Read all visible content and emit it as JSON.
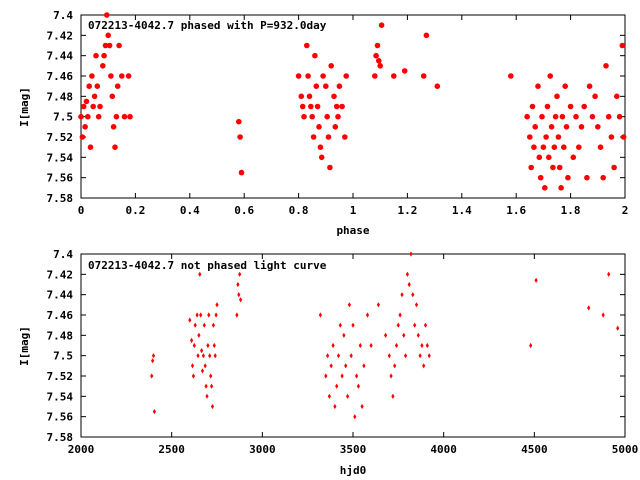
{
  "chart_data": [
    {
      "type": "scatter",
      "title": "072213-4042.7 phased with P=932.0day",
      "xlabel": "phase",
      "ylabel": "I[mag]",
      "xlim": [
        0,
        2
      ],
      "ylim": [
        7.4,
        7.58
      ],
      "y_inverted": true,
      "grid": false,
      "x_ticks": [
        "0",
        "0.2",
        "0.4",
        "0.6",
        "0.8",
        "1",
        "1.2",
        "1.4",
        "1.6",
        "1.8",
        "2"
      ],
      "y_ticks": [
        "7.4",
        "7.42",
        "7.44",
        "7.46",
        "7.48",
        "7.5",
        "7.52",
        "7.54",
        "7.56",
        "7.58"
      ],
      "marker_color": "#ff0000",
      "points": [
        [
          0.0,
          7.5
        ],
        [
          0.005,
          7.52
        ],
        [
          0.01,
          7.49
        ],
        [
          0.015,
          7.51
        ],
        [
          0.02,
          7.485
        ],
        [
          0.025,
          7.5
        ],
        [
          0.03,
          7.47
        ],
        [
          0.035,
          7.53
        ],
        [
          0.04,
          7.46
        ],
        [
          0.045,
          7.49
        ],
        [
          0.05,
          7.48
        ],
        [
          0.055,
          7.44
        ],
        [
          0.06,
          7.47
        ],
        [
          0.065,
          7.5
        ],
        [
          0.07,
          7.49
        ],
        [
          0.08,
          7.45
        ],
        [
          0.085,
          7.44
        ],
        [
          0.09,
          7.43
        ],
        [
          0.095,
          7.4
        ],
        [
          0.1,
          7.42
        ],
        [
          0.105,
          7.43
        ],
        [
          0.11,
          7.46
        ],
        [
          0.115,
          7.48
        ],
        [
          0.12,
          7.51
        ],
        [
          0.125,
          7.53
        ],
        [
          0.13,
          7.5
        ],
        [
          0.135,
          7.47
        ],
        [
          0.14,
          7.43
        ],
        [
          0.15,
          7.46
        ],
        [
          0.16,
          7.5
        ],
        [
          0.175,
          7.46
        ],
        [
          0.18,
          7.5
        ],
        [
          0.58,
          7.505
        ],
        [
          0.585,
          7.52
        ],
        [
          0.59,
          7.555
        ],
        [
          0.8,
          7.46
        ],
        [
          0.81,
          7.48
        ],
        [
          0.815,
          7.49
        ],
        [
          0.82,
          7.5
        ],
        [
          0.83,
          7.43
        ],
        [
          0.835,
          7.46
        ],
        [
          0.84,
          7.48
        ],
        [
          0.845,
          7.49
        ],
        [
          0.85,
          7.5
        ],
        [
          0.855,
          7.52
        ],
        [
          0.86,
          7.44
        ],
        [
          0.865,
          7.47
        ],
        [
          0.87,
          7.49
        ],
        [
          0.875,
          7.51
        ],
        [
          0.88,
          7.53
        ],
        [
          0.885,
          7.54
        ],
        [
          0.89,
          7.46
        ],
        [
          0.9,
          7.47
        ],
        [
          0.905,
          7.5
        ],
        [
          0.91,
          7.52
        ],
        [
          0.915,
          7.55
        ],
        [
          0.92,
          7.45
        ],
        [
          0.93,
          7.48
        ],
        [
          0.935,
          7.51
        ],
        [
          0.94,
          7.49
        ],
        [
          0.945,
          7.5
        ],
        [
          0.95,
          7.47
        ],
        [
          0.96,
          7.49
        ],
        [
          0.97,
          7.52
        ],
        [
          0.975,
          7.46
        ],
        [
          1.08,
          7.46
        ],
        [
          1.085,
          7.44
        ],
        [
          1.09,
          7.43
        ],
        [
          1.095,
          7.445
        ],
        [
          1.1,
          7.45
        ],
        [
          1.105,
          7.41
        ],
        [
          1.15,
          7.46
        ],
        [
          1.19,
          7.455
        ],
        [
          1.26,
          7.46
        ],
        [
          1.27,
          7.42
        ],
        [
          1.31,
          7.47
        ],
        [
          1.58,
          7.46
        ],
        [
          1.64,
          7.5
        ],
        [
          1.65,
          7.52
        ],
        [
          1.655,
          7.55
        ],
        [
          1.66,
          7.49
        ],
        [
          1.665,
          7.53
        ],
        [
          1.67,
          7.51
        ],
        [
          1.68,
          7.47
        ],
        [
          1.685,
          7.54
        ],
        [
          1.69,
          7.56
        ],
        [
          1.695,
          7.5
        ],
        [
          1.7,
          7.53
        ],
        [
          1.705,
          7.57
        ],
        [
          1.71,
          7.52
        ],
        [
          1.715,
          7.49
        ],
        [
          1.72,
          7.54
        ],
        [
          1.725,
          7.46
        ],
        [
          1.73,
          7.51
        ],
        [
          1.735,
          7.55
        ],
        [
          1.74,
          7.53
        ],
        [
          1.745,
          7.5
        ],
        [
          1.75,
          7.48
        ],
        [
          1.755,
          7.52
        ],
        [
          1.76,
          7.55
        ],
        [
          1.765,
          7.57
        ],
        [
          1.77,
          7.5
        ],
        [
          1.775,
          7.53
        ],
        [
          1.78,
          7.47
        ],
        [
          1.785,
          7.51
        ],
        [
          1.79,
          7.56
        ],
        [
          1.8,
          7.49
        ],
        [
          1.81,
          7.54
        ],
        [
          1.82,
          7.5
        ],
        [
          1.83,
          7.53
        ],
        [
          1.84,
          7.51
        ],
        [
          1.85,
          7.49
        ],
        [
          1.86,
          7.56
        ],
        [
          1.87,
          7.47
        ],
        [
          1.88,
          7.5
        ],
        [
          1.89,
          7.48
        ],
        [
          1.9,
          7.51
        ],
        [
          1.91,
          7.53
        ],
        [
          1.92,
          7.56
        ],
        [
          1.93,
          7.45
        ],
        [
          1.94,
          7.5
        ],
        [
          1.95,
          7.52
        ],
        [
          1.96,
          7.55
        ],
        [
          1.97,
          7.48
        ],
        [
          1.98,
          7.5
        ],
        [
          1.99,
          7.43
        ],
        [
          1.995,
          7.52
        ]
      ]
    },
    {
      "type": "scatter",
      "title": "072213-4042.7 not phased light curve",
      "xlabel": "hjd0",
      "ylabel": "I[mag]",
      "xlim": [
        2000,
        5000
      ],
      "ylim": [
        7.4,
        7.58
      ],
      "y_inverted": true,
      "grid": false,
      "x_ticks": [
        "2000",
        "2500",
        "3000",
        "3500",
        "4000",
        "4500",
        "5000"
      ],
      "y_ticks": [
        "7.4",
        "7.42",
        "7.44",
        "7.46",
        "7.48",
        "7.5",
        "7.52",
        "7.54",
        "7.56",
        "7.58"
      ],
      "marker_color": "#ff0000",
      "points": [
        [
          2390,
          7.52
        ],
        [
          2395,
          7.505
        ],
        [
          2400,
          7.5
        ],
        [
          2405,
          7.555
        ],
        [
          2600,
          7.465
        ],
        [
          2610,
          7.485
        ],
        [
          2615,
          7.51
        ],
        [
          2620,
          7.52
        ],
        [
          2625,
          7.49
        ],
        [
          2630,
          7.47
        ],
        [
          2640,
          7.46
        ],
        [
          2645,
          7.5
        ],
        [
          2650,
          7.48
        ],
        [
          2655,
          7.42
        ],
        [
          2660,
          7.46
        ],
        [
          2665,
          7.495
        ],
        [
          2670,
          7.515
        ],
        [
          2675,
          7.5
        ],
        [
          2680,
          7.47
        ],
        [
          2685,
          7.51
        ],
        [
          2690,
          7.53
        ],
        [
          2695,
          7.54
        ],
        [
          2700,
          7.49
        ],
        [
          2705,
          7.46
        ],
        [
          2710,
          7.5
        ],
        [
          2715,
          7.52
        ],
        [
          2720,
          7.53
        ],
        [
          2725,
          7.55
        ],
        [
          2730,
          7.47
        ],
        [
          2735,
          7.49
        ],
        [
          2740,
          7.5
        ],
        [
          2745,
          7.46
        ],
        [
          2750,
          7.45
        ],
        [
          2860,
          7.46
        ],
        [
          2865,
          7.43
        ],
        [
          2870,
          7.44
        ],
        [
          2875,
          7.42
        ],
        [
          2880,
          7.445
        ],
        [
          3320,
          7.46
        ],
        [
          3350,
          7.52
        ],
        [
          3360,
          7.5
        ],
        [
          3370,
          7.54
        ],
        [
          3380,
          7.51
        ],
        [
          3390,
          7.49
        ],
        [
          3400,
          7.55
        ],
        [
          3410,
          7.53
        ],
        [
          3420,
          7.5
        ],
        [
          3430,
          7.47
        ],
        [
          3440,
          7.52
        ],
        [
          3450,
          7.48
        ],
        [
          3460,
          7.51
        ],
        [
          3470,
          7.54
        ],
        [
          3480,
          7.45
        ],
        [
          3490,
          7.5
        ],
        [
          3500,
          7.47
        ],
        [
          3510,
          7.56
        ],
        [
          3520,
          7.52
        ],
        [
          3530,
          7.53
        ],
        [
          3540,
          7.49
        ],
        [
          3550,
          7.55
        ],
        [
          3560,
          7.51
        ],
        [
          3580,
          7.46
        ],
        [
          3600,
          7.49
        ],
        [
          3640,
          7.45
        ],
        [
          3680,
          7.48
        ],
        [
          3700,
          7.5
        ],
        [
          3710,
          7.52
        ],
        [
          3720,
          7.54
        ],
        [
          3730,
          7.51
        ],
        [
          3740,
          7.49
        ],
        [
          3750,
          7.47
        ],
        [
          3760,
          7.46
        ],
        [
          3770,
          7.44
        ],
        [
          3780,
          7.48
        ],
        [
          3790,
          7.5
        ],
        [
          3800,
          7.42
        ],
        [
          3810,
          7.43
        ],
        [
          3820,
          7.4
        ],
        [
          3830,
          7.44
        ],
        [
          3840,
          7.47
        ],
        [
          3850,
          7.45
        ],
        [
          3860,
          7.48
        ],
        [
          3870,
          7.5
        ],
        [
          3880,
          7.49
        ],
        [
          3890,
          7.51
        ],
        [
          3900,
          7.47
        ],
        [
          3910,
          7.49
        ],
        [
          3920,
          7.5
        ],
        [
          4480,
          7.49
        ],
        [
          4510,
          7.426
        ],
        [
          4800,
          7.453
        ],
        [
          4880,
          7.46
        ],
        [
          4910,
          7.42
        ],
        [
          4960,
          7.473
        ]
      ]
    }
  ]
}
